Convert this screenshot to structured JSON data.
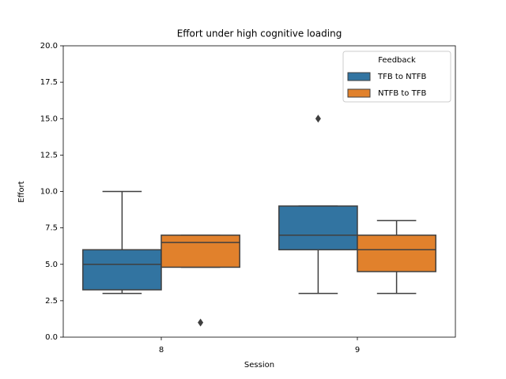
{
  "chart_data": {
    "type": "box",
    "title": "Effort under high cognitive loading",
    "xlabel": "Session",
    "ylabel": "Effort",
    "categories": [
      "8",
      "9"
    ],
    "series": [
      {
        "name": "TFB to NTFB",
        "color": "#3274a1",
        "boxes": [
          {
            "whislo": 3,
            "q1": 3.25,
            "med": 5,
            "q3": 6,
            "whishi": 10,
            "fliers": []
          },
          {
            "whislo": 3,
            "q1": 6,
            "med": 7,
            "q3": 9,
            "whishi": 9,
            "fliers": [
              15
            ]
          }
        ]
      },
      {
        "name": "NTFB to TFB",
        "color": "#e1812c",
        "boxes": [
          {
            "whislo": 4.8,
            "q1": 4.8,
            "med": 6.5,
            "q3": 7,
            "whishi": 7,
            "fliers": [
              1
            ]
          },
          {
            "whislo": 3,
            "q1": 4.5,
            "med": 6,
            "q3": 7,
            "whishi": 8,
            "fliers": []
          }
        ]
      }
    ],
    "ylim": [
      0,
      20
    ],
    "yticks": [
      {
        "value": 0,
        "label": "0.0"
      },
      2.5,
      {
        "value": 5,
        "label": "5.0"
      },
      7.5,
      {
        "value": 10,
        "label": "10.0"
      },
      12.5,
      {
        "value": 15,
        "label": "15.0"
      },
      17.5,
      {
        "value": 20,
        "label": "20.0"
      }
    ],
    "grid": false,
    "legend": {
      "title": "Feedback",
      "loc": "upper right"
    }
  }
}
